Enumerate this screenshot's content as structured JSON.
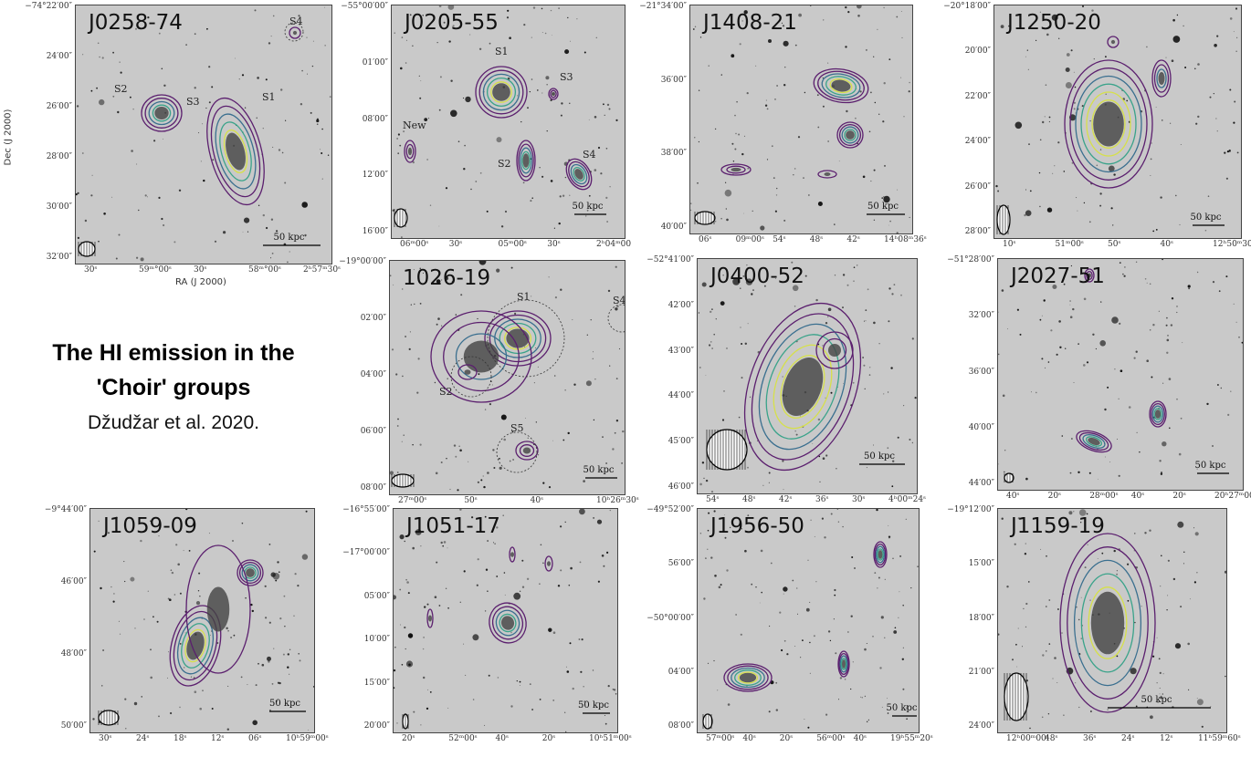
{
  "caption": {
    "title_line1": "The HI emission in the",
    "title_line2": "'Choir' groups",
    "citation": "Džudžar et al. 2020."
  },
  "colors": {
    "contour_outer": "#5b1f6e",
    "contour_mid": "#3a6f8f",
    "contour_inner": "#3aa38a",
    "contour_core": "#d6e04a",
    "background_grey": "#c9c9c9"
  },
  "panels": [
    {
      "name": "J0258-74",
      "y_ticks": [
        "−74°22′00″",
        "24′00″",
        "26′00″",
        "28′00″",
        "30′00″",
        "32′00″"
      ],
      "x_ticks": [
        "30ˢ",
        "59ᵐ°00ˢ",
        "30ˢ",
        "58ᵐ°00ˢ",
        "2ʰ57ᵐ30ˢ"
      ],
      "x_title": "RA (J 2000)",
      "y_title": "Dec (J 2000)",
      "sources": [
        "S1",
        "S2",
        "S3",
        "S4"
      ],
      "scale": "50 kpc"
    },
    {
      "name": "J0205-55",
      "y_ticks": [
        "−55°00′00″",
        "01′00″",
        "08′00″",
        "12′00″",
        "16′00″"
      ],
      "x_ticks": [
        "06ᵐ00ˢ",
        "30ˢ",
        "05ᵐ00ˢ",
        "30ˢ",
        "2ʰ04ᵐ00"
      ],
      "sources": [
        "S1",
        "S2",
        "S3",
        "S4",
        "New"
      ],
      "scale": "50 kpc"
    },
    {
      "name": "J1408-21",
      "y_ticks": [
        "−21°34′00″",
        "36′00″",
        "38′00″",
        "40′00″"
      ],
      "x_ticks": [
        "06ˢ",
        "09ᵐ00ˢ",
        "54ˢ",
        "48ˢ",
        "42ˢ",
        "14ʰ08ᵐ36ˢ"
      ],
      "scale": "50 kpc"
    },
    {
      "name": "J1250-20",
      "y_ticks": [
        "−20°18′00″",
        "20′00″",
        "22′00″",
        "24′00″",
        "26′00″",
        "28′00″"
      ],
      "x_ticks": [
        "10ˢ",
        "51ᵐ00ˢ",
        "50ˢ",
        "40ˢ",
        "12ʰ50ᵐ30ˢ"
      ],
      "scale": "50 kpc"
    },
    {
      "name": "1026-19",
      "y_ticks": [
        "−19°00′00″",
        "02′00″",
        "04′00″",
        "06′00″",
        "08′00″"
      ],
      "x_ticks": [
        "27ᵐ00ˢ",
        "50ˢ",
        "40ˢ",
        "10ʰ26ᵐ30ˢ"
      ],
      "sources": [
        "S1",
        "S2",
        "S4",
        "S5"
      ],
      "scale": "50 kpc"
    },
    {
      "name": "J0400-52",
      "y_ticks": [
        "−52°41′00″",
        "42′00″",
        "43′00″",
        "44′00″",
        "45′00″",
        "46′00″"
      ],
      "x_ticks": [
        "54ˢ",
        "48ˢ",
        "42ˢ",
        "36ˢ",
        "30ˢ",
        "4ʰ00ᵐ24ˢ"
      ],
      "scale": "50 kpc"
    },
    {
      "name": "J2027-51",
      "y_ticks": [
        "−51°28′00″",
        "32′00″",
        "36′00″",
        "40′00″",
        "44′00″"
      ],
      "x_ticks": [
        "40ˢ",
        "20ˢ",
        "28ᵐ00ˢ",
        "40ˢ",
        "20ˢ",
        "20ʰ27ᵐ00ˢ"
      ],
      "scale": "50 kpc"
    },
    {
      "name": "J1059-09",
      "y_ticks": [
        "−9°44′00″",
        "46′00″",
        "48′00″",
        "50′00″"
      ],
      "x_ticks": [
        "30ˢ",
        "24ˢ",
        "18ˢ",
        "12ˢ",
        "06ˢ",
        "10ʰ59ᵐ00ˢ"
      ],
      "scale": "50 kpc"
    },
    {
      "name": "J1051-17",
      "y_ticks": [
        "−16°55′00″",
        "−17°00′00″",
        "05′00″",
        "10′00″",
        "15′00″",
        "20′00″"
      ],
      "x_ticks": [
        "20ˢ",
        "52ᵐ00ˢ",
        "40ˢ",
        "20ˢ",
        "10ʰ51ᵐ00ˢ"
      ],
      "scale": "50 kpc"
    },
    {
      "name": "J1956-50",
      "y_ticks": [
        "−49°52′00″",
        "56′00″",
        "−50°00′00″",
        "04′00″",
        "08′00″"
      ],
      "x_ticks": [
        "57ᵐ00ˢ",
        "40ˢ",
        "20ˢ",
        "56ᵐ00ˢ",
        "40ˢ",
        "19ʰ55ᵐ20ˢ"
      ],
      "scale": "50 kpc"
    },
    {
      "name": "J1159-19",
      "y_ticks": [
        "−19°12′00″",
        "15′00″",
        "18′00″",
        "21′00″",
        "24′00″"
      ],
      "x_ticks": [
        "12ʰ00ᵐ00ˢ",
        "48ˢ",
        "36ˢ",
        "24ˢ",
        "12ˢ",
        "11ʰ59ᵐ60ˢ"
      ],
      "scale": "50 kpc"
    }
  ]
}
